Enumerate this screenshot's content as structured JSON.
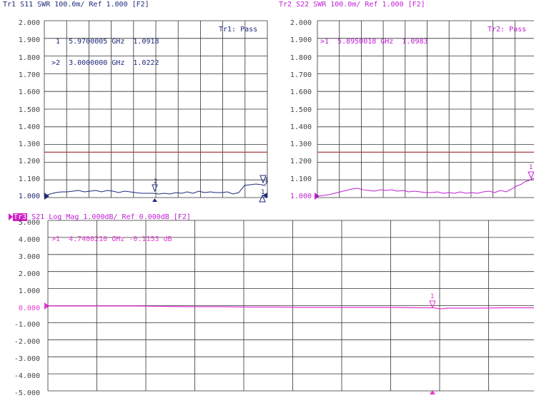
{
  "colors": {
    "tr1": "#1f2a7a",
    "tr2": "#c01fd6",
    "tr3": "#e43ad2",
    "tr3_badge_bg": "#d020c8",
    "limit_line": "#9b2a2a",
    "grid": "#333333",
    "tick_text": "#444444"
  },
  "panels": {
    "tr1": {
      "header": "Tr1 S11 SWR 100.0m/ Ref 1.000 [F2]",
      "status": "Tr1: Pass",
      "y_ticks": [
        "2.000",
        "1.900",
        "1.800",
        "1.700",
        "1.600",
        "1.500",
        "1.400",
        "1.300",
        "1.200",
        "1.100",
        "1.000"
      ],
      "markers": [
        {
          "id": "1",
          "text": " 1  5.9700005 GHz  1.0918"
        },
        {
          "id": "2",
          "text": ">2  3.0000000 GHz  1.0222"
        }
      ],
      "marker_flags": [
        "2",
        "1",
        "1"
      ]
    },
    "tr2": {
      "header": "Tr2 S22 SWR 100.0m/ Ref 1.000 [F2]",
      "status": "Tr2: Pass",
      "y_ticks": [
        "2.000",
        "1.900",
        "1.800",
        "1.700",
        "1.600",
        "1.500",
        "1.400",
        "1.300",
        "1.200",
        "1.100",
        "1.000"
      ],
      "markers": [
        {
          "id": "1",
          "text": ">1  5.8950018 GHz  1.0983"
        }
      ],
      "marker_flags": [
        "1"
      ]
    },
    "tr3": {
      "badge": "Tr3",
      "header": " S21 Log Mag 1.000dB/ Ref 0.000dB [F2]",
      "y_ticks": [
        "5.000",
        "4.000",
        "3.000",
        "2.000",
        "1.000",
        "0.000",
        "-1.000",
        "-2.000",
        "-3.000",
        "-4.000",
        "-5.000"
      ],
      "markers": [
        {
          "id": "1",
          "text": ">1  4.7400210 GHz -0.1153 dB"
        }
      ],
      "marker_flags": [
        "1"
      ]
    }
  }
}
